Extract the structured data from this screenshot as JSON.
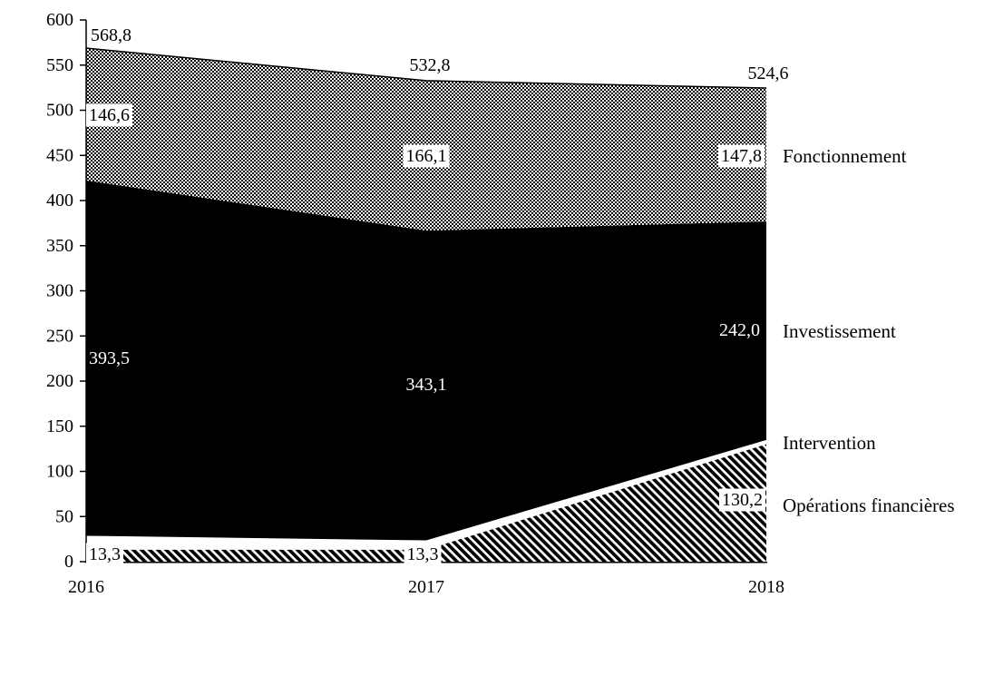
{
  "chart_data": {
    "type": "area",
    "stacked": true,
    "title": "",
    "xlabel": "",
    "ylabel": "",
    "categories": [
      "2016",
      "2017",
      "2018"
    ],
    "series": [
      {
        "name": "Opérations financières",
        "key": "operations-financieres",
        "values": [
          13.3,
          13.3,
          130.2
        ],
        "labels": [
          "13,3",
          "13,3",
          "130,2"
        ],
        "pattern": "diagonal-stripes",
        "color": "#000000",
        "label_style": "boxed-black-on-white"
      },
      {
        "name": "Intervention",
        "key": "intervention",
        "values": [
          15.4,
          10.3,
          4.6
        ],
        "estimated_from_totals": true,
        "labels": [
          "",
          "",
          ""
        ],
        "pattern": "solid",
        "color": "#ffffff",
        "label_style": "none"
      },
      {
        "name": "Investissement",
        "key": "investissement",
        "values": [
          393.5,
          343.1,
          242.0
        ],
        "labels": [
          "393,5",
          "343,1",
          "242,0"
        ],
        "pattern": "solid",
        "color": "#000000",
        "label_style": "plain-white-on-black"
      },
      {
        "name": "Fonctionnement",
        "key": "fonctionnement",
        "values": [
          146.6,
          166.1,
          147.8
        ],
        "labels": [
          "146,6",
          "166,1",
          "147,8"
        ],
        "pattern": "checkerboard",
        "color": "#000000",
        "label_style": "boxed-black-on-white"
      }
    ],
    "totals": {
      "values": [
        568.8,
        532.8,
        524.6
      ],
      "labels": [
        "568,8",
        "532,8",
        "524,6"
      ]
    },
    "y_axis": {
      "min": 0,
      "max": 600,
      "step": 50,
      "tick_labels": [
        "0",
        "50",
        "100",
        "150",
        "200",
        "250",
        "300",
        "350",
        "400",
        "450",
        "500",
        "550",
        "600"
      ]
    },
    "x_axis": {
      "tick_labels": [
        "2016",
        "2017",
        "2018"
      ]
    },
    "legend": {
      "position": "right",
      "entries": [
        "Fonctionnement",
        "Investissement",
        "Intervention",
        "Opérations financières"
      ]
    },
    "grid": false,
    "decimal_separator": ",",
    "colors": {
      "ink": "#000000",
      "background": "#ffffff"
    }
  }
}
